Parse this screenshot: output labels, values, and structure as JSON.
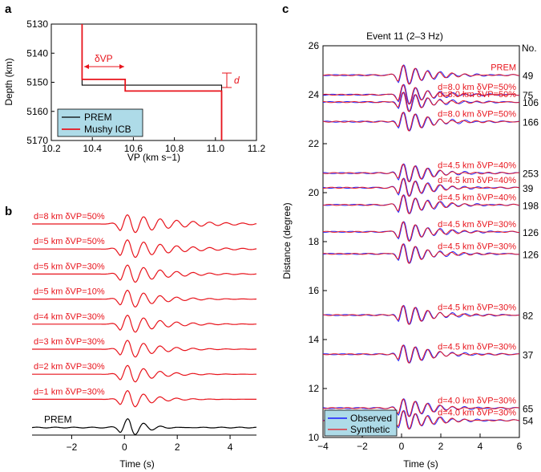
{
  "panel_labels": {
    "a": "a",
    "b": "b",
    "c": "c"
  },
  "colors": {
    "red": "#e8141c",
    "blue": "#1a1aff",
    "black": "#000000",
    "legend_bg": "#aedbe8"
  },
  "chart_data": [
    {
      "id": "a",
      "type": "line",
      "xlabel": "VP (km s−1)",
      "ylabel": "Depth (km)",
      "xlim": [
        10.2,
        11.2
      ],
      "ylim": [
        5170,
        5130
      ],
      "x_ticks": [
        "10.2",
        "10.4",
        "10.6",
        "10.8",
        "11.0",
        "11.2"
      ],
      "y_ticks": [
        "5130",
        "5140",
        "5150",
        "5160",
        "5170"
      ],
      "series": [
        {
          "name": "PREM",
          "color": "#000000",
          "points": [
            [
              10.35,
              5130
            ],
            [
              10.35,
              5151
            ],
            [
              11.03,
              5151
            ],
            [
              11.03,
              5170
            ]
          ]
        },
        {
          "name": "Mushy ICB",
          "color": "#e8141c",
          "points": [
            [
              10.35,
              5130
            ],
            [
              10.35,
              5149
            ],
            [
              10.56,
              5149
            ],
            [
              10.56,
              5153
            ],
            [
              11.03,
              5153
            ],
            [
              11.03,
              5170
            ]
          ]
        }
      ],
      "annotations": {
        "dvp": "δVP",
        "d": "d"
      },
      "legend": [
        "PREM",
        "Mushy ICB"
      ]
    },
    {
      "id": "b",
      "type": "line",
      "xlabel": "Time (s)",
      "xlim": [
        -3.5,
        5
      ],
      "x_ticks": [
        "−2",
        "0",
        "2",
        "4"
      ],
      "traces": [
        {
          "label": "d=8 km  δVP=50%",
          "color": "#e8141c",
          "damping": 0.55
        },
        {
          "label": "d=5 km  δVP=50%",
          "color": "#e8141c",
          "damping": 0.62
        },
        {
          "label": "d=5 km  δVP=30%",
          "color": "#e8141c",
          "damping": 0.75
        },
        {
          "label": "d=5 km  δVP=10%",
          "color": "#e8141c",
          "damping": 0.9
        },
        {
          "label": "d=4 km  δVP=30%",
          "color": "#e8141c",
          "damping": 0.85
        },
        {
          "label": "d=3 km  δVP=30%",
          "color": "#e8141c",
          "damping": 0.95
        },
        {
          "label": "d=2 km  δVP=30%",
          "color": "#e8141c",
          "damping": 1.05
        },
        {
          "label": "d=1 km  δVP=30%",
          "color": "#e8141c",
          "damping": 1.2
        },
        {
          "label": "PREM",
          "color": "#000000",
          "damping": 1.6
        }
      ]
    },
    {
      "id": "c",
      "type": "line",
      "title": "Event 11 (2–3 Hz)",
      "xlabel": "Time (s)",
      "ylabel": "Distance (degree)",
      "xlim": [
        -4,
        6
      ],
      "ylim": [
        10,
        26
      ],
      "x_ticks": [
        "−4",
        "−2",
        "0",
        "2",
        "4",
        "6"
      ],
      "y_ticks": [
        "10",
        "12",
        "14",
        "16",
        "18",
        "20",
        "22",
        "24",
        "26"
      ],
      "no_header": "No.",
      "traces": [
        {
          "distance": 24.8,
          "label": "PREM",
          "number": "49"
        },
        {
          "distance": 24.0,
          "label": "d=8.0 km  δVP=50%",
          "number": "75"
        },
        {
          "distance": 23.7,
          "label": "d=8.0 km  δVP=50%",
          "number": "106"
        },
        {
          "distance": 22.9,
          "label": "d=8.0 km  δVP=50%",
          "number": "166"
        },
        {
          "distance": 20.8,
          "label": "d=4.5 km  δVP=40%",
          "number": "253"
        },
        {
          "distance": 20.2,
          "label": "d=4.5 km  δVP=40%",
          "number": "39"
        },
        {
          "distance": 19.5,
          "label": "d=4.5 km  δVP=40%",
          "number": "198"
        },
        {
          "distance": 18.4,
          "label": "d=4.5 km  δVP=30%",
          "number": "126"
        },
        {
          "distance": 17.5,
          "label": "d=4.5 km  δVP=30%",
          "number": "126"
        },
        {
          "distance": 15.0,
          "label": "d=4.5 km  δVP=30%",
          "number": "82"
        },
        {
          "distance": 13.4,
          "label": "d=4.5 km  δVP=30%",
          "number": "37"
        },
        {
          "distance": 11.2,
          "label": "d=4.0 km  δVP=30%",
          "number": "65"
        },
        {
          "distance": 10.7,
          "label": "d=4.0 km  δVP=30%",
          "number": "54"
        }
      ],
      "legend": [
        "Observed",
        "Synthetic"
      ]
    }
  ]
}
